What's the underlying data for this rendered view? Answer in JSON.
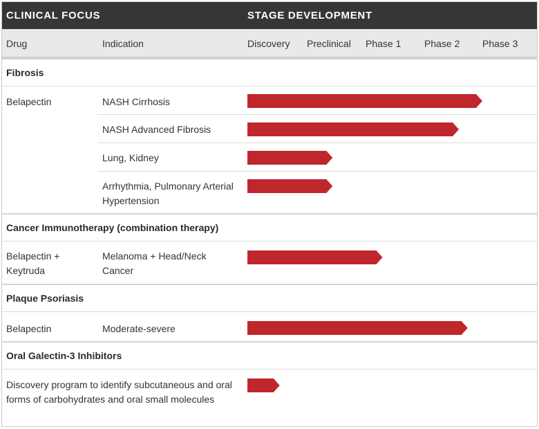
{
  "header": {
    "left_title": "CLINICAL FOCUS",
    "right_title": "STAGE DEVELOPMENT"
  },
  "columns": {
    "drug": "Drug",
    "indication": "Indication",
    "stages": [
      "Discovery",
      "Preclinical",
      "Phase 1",
      "Phase 2",
      "Phase 3"
    ]
  },
  "sections": [
    {
      "title": "Fibrosis",
      "rows": [
        {
          "drug": "Belapectin",
          "indication": "NASH Cirrhosis"
        },
        {
          "drug": "",
          "indication": "NASH Advanced Fibrosis"
        },
        {
          "drug": "",
          "indication": "Lung, Kidney"
        },
        {
          "drug": "",
          "indication": "Arrhythmia, Pulmonary Arterial Hypertension"
        }
      ]
    },
    {
      "title": "Cancer Immunotherapy (combination therapy)",
      "rows": [
        {
          "drug": "Belapectin + Keytruda",
          "indication": "Melanoma + Head/Neck Cancer"
        }
      ]
    },
    {
      "title": "Plaque Psoriasis",
      "rows": [
        {
          "drug": "Belapectin",
          "indication": "Moderate-severe"
        }
      ]
    },
    {
      "title": "Oral Galectin-3 Inhibitors",
      "rows": [
        {
          "drug": "Discovery program to identify subcutaneous and oral forms of carbohydrates and oral small molecules",
          "indication": ""
        }
      ]
    }
  ],
  "chart_data": {
    "type": "bar",
    "orientation": "horizontal",
    "stages": [
      "Discovery",
      "Preclinical",
      "Phase 1",
      "Phase 2",
      "Phase 3"
    ],
    "categories": [
      "NASH Cirrhosis",
      "NASH Advanced Fibrosis",
      "Lung, Kidney",
      "Arrhythmia, Pulmonary Arterial Hypertension",
      "Melanoma + Head/Neck Cancer",
      "Moderate-severe",
      "Discovery program to identify subcutaneous and oral forms of carbohydrates and oral small molecules"
    ],
    "values": [
      4.0,
      3.6,
      1.45,
      1.45,
      2.3,
      3.75,
      0.55
    ],
    "xlim": [
      0,
      5
    ],
    "bar_color": "#c0272d",
    "grid": false
  }
}
